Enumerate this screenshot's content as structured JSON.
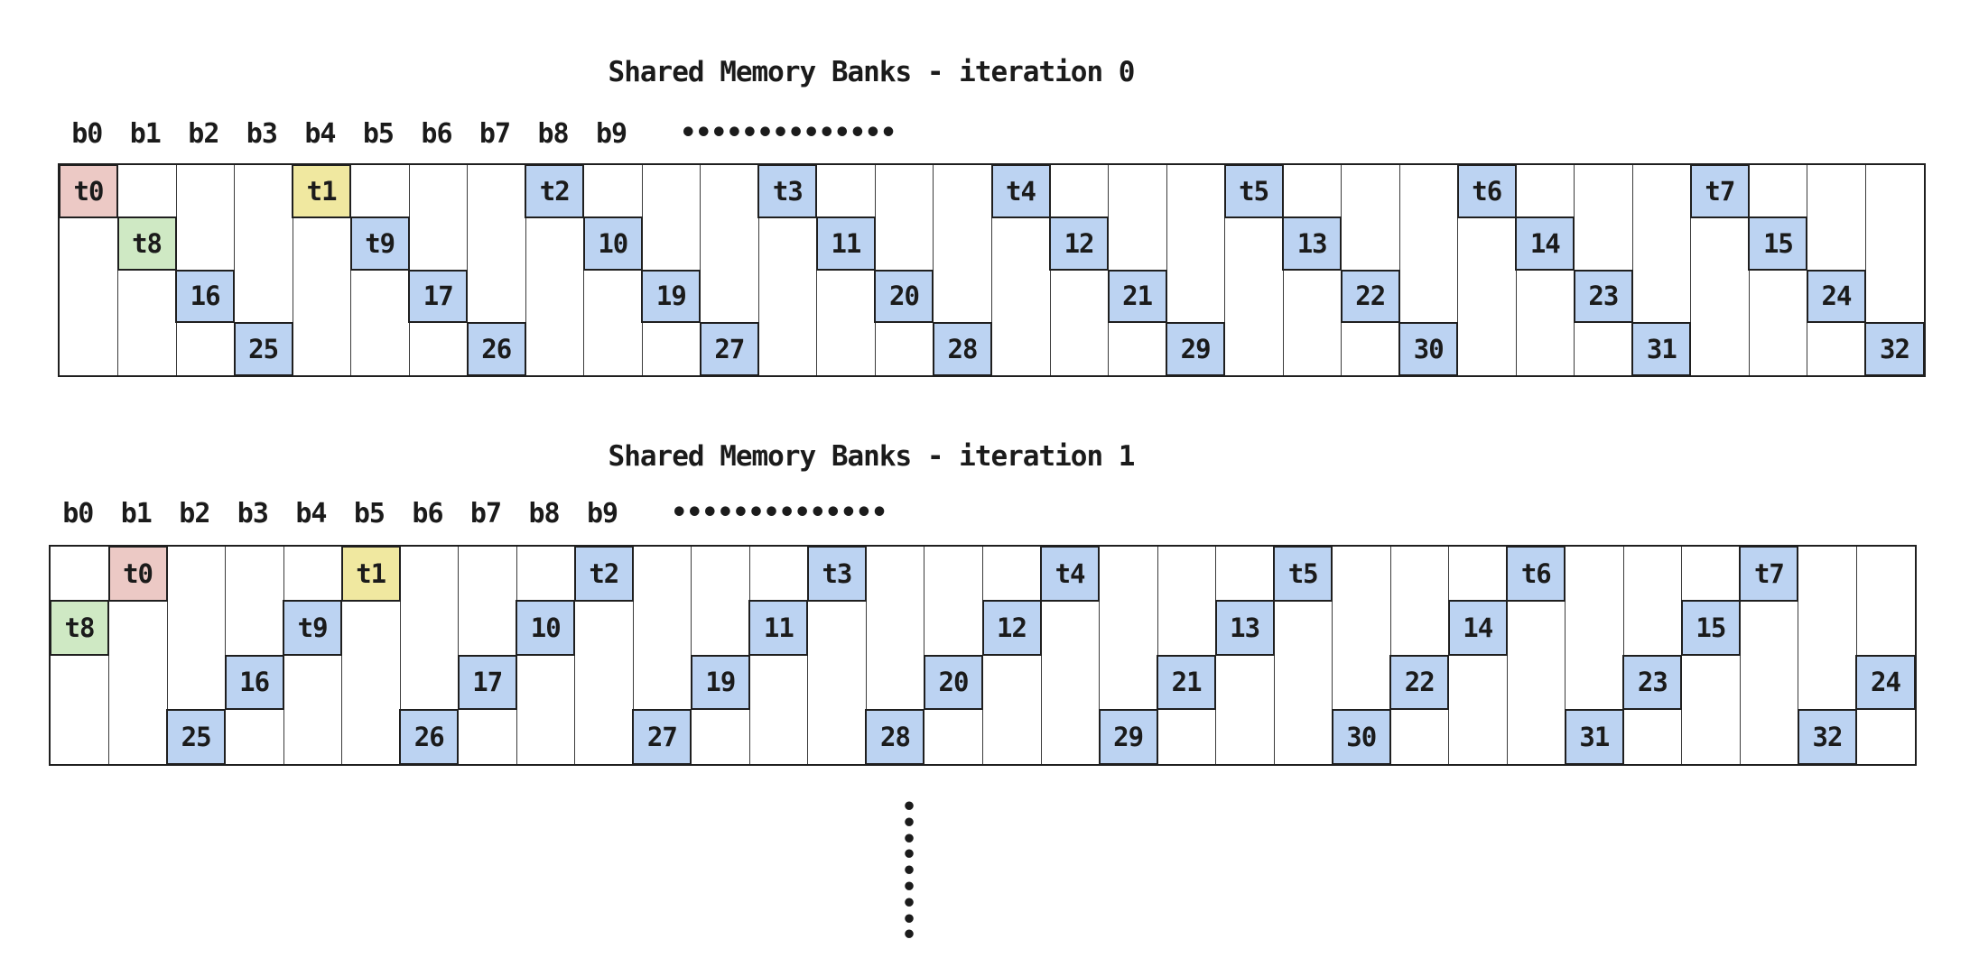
{
  "palette": {
    "red": "#ecc9c5",
    "green": "#cfe9c4",
    "yellow": "#f0e8a0",
    "blue": "#bcd3f2",
    "line": "#1f1f1f",
    "text": "#1b1b1b"
  },
  "vertical_dots": "•••••••••",
  "diagrams": [
    {
      "title": "Shared Memory Banks - iteration 0",
      "bank_labels": [
        "b0",
        "b1",
        "b2",
        "b3",
        "b4",
        "b5",
        "b6",
        "b7",
        "b8",
        "b9"
      ],
      "dots": "••••••••••••••",
      "banks": 32,
      "rows": 4,
      "cells": [
        {
          "row": 0,
          "col": 0,
          "label": "t0",
          "color": "red"
        },
        {
          "row": 1,
          "col": 1,
          "label": "t8",
          "color": "green"
        },
        {
          "row": 2,
          "col": 2,
          "label": "16",
          "color": "blue"
        },
        {
          "row": 3,
          "col": 3,
          "label": "25",
          "color": "blue"
        },
        {
          "row": 0,
          "col": 4,
          "label": "t1",
          "color": "yellow"
        },
        {
          "row": 1,
          "col": 5,
          "label": "t9",
          "color": "blue"
        },
        {
          "row": 2,
          "col": 6,
          "label": "17",
          "color": "blue"
        },
        {
          "row": 3,
          "col": 7,
          "label": "26",
          "color": "blue"
        },
        {
          "row": 0,
          "col": 8,
          "label": "t2",
          "color": "blue"
        },
        {
          "row": 1,
          "col": 9,
          "label": "10",
          "color": "blue"
        },
        {
          "row": 2,
          "col": 10,
          "label": "19",
          "color": "blue"
        },
        {
          "row": 3,
          "col": 11,
          "label": "27",
          "color": "blue"
        },
        {
          "row": 0,
          "col": 12,
          "label": "t3",
          "color": "blue"
        },
        {
          "row": 1,
          "col": 13,
          "label": "11",
          "color": "blue"
        },
        {
          "row": 2,
          "col": 14,
          "label": "20",
          "color": "blue"
        },
        {
          "row": 3,
          "col": 15,
          "label": "28",
          "color": "blue"
        },
        {
          "row": 0,
          "col": 16,
          "label": "t4",
          "color": "blue"
        },
        {
          "row": 1,
          "col": 17,
          "label": "12",
          "color": "blue"
        },
        {
          "row": 2,
          "col": 18,
          "label": "21",
          "color": "blue"
        },
        {
          "row": 3,
          "col": 19,
          "label": "29",
          "color": "blue"
        },
        {
          "row": 0,
          "col": 20,
          "label": "t5",
          "color": "blue"
        },
        {
          "row": 1,
          "col": 21,
          "label": "13",
          "color": "blue"
        },
        {
          "row": 2,
          "col": 22,
          "label": "22",
          "color": "blue"
        },
        {
          "row": 3,
          "col": 23,
          "label": "30",
          "color": "blue"
        },
        {
          "row": 0,
          "col": 24,
          "label": "t6",
          "color": "blue"
        },
        {
          "row": 1,
          "col": 25,
          "label": "14",
          "color": "blue"
        },
        {
          "row": 2,
          "col": 26,
          "label": "23",
          "color": "blue"
        },
        {
          "row": 3,
          "col": 27,
          "label": "31",
          "color": "blue"
        },
        {
          "row": 0,
          "col": 28,
          "label": "t7",
          "color": "blue"
        },
        {
          "row": 1,
          "col": 29,
          "label": "15",
          "color": "blue"
        },
        {
          "row": 2,
          "col": 30,
          "label": "24",
          "color": "blue"
        },
        {
          "row": 3,
          "col": 31,
          "label": "32",
          "color": "blue"
        }
      ]
    },
    {
      "title": "Shared Memory Banks - iteration 1",
      "bank_labels": [
        "b0",
        "b1",
        "b2",
        "b3",
        "b4",
        "b5",
        "b6",
        "b7",
        "b8",
        "b9"
      ],
      "dots": "••••••••••••••",
      "banks": 32,
      "rows": 4,
      "cells": [
        {
          "row": 1,
          "col": 0,
          "label": "t8",
          "color": "green"
        },
        {
          "row": 0,
          "col": 1,
          "label": "t0",
          "color": "red"
        },
        {
          "row": 3,
          "col": 2,
          "label": "25",
          "color": "blue"
        },
        {
          "row": 2,
          "col": 3,
          "label": "16",
          "color": "blue"
        },
        {
          "row": 1,
          "col": 4,
          "label": "t9",
          "color": "blue"
        },
        {
          "row": 0,
          "col": 5,
          "label": "t1",
          "color": "yellow"
        },
        {
          "row": 3,
          "col": 6,
          "label": "26",
          "color": "blue"
        },
        {
          "row": 2,
          "col": 7,
          "label": "17",
          "color": "blue"
        },
        {
          "row": 1,
          "col": 8,
          "label": "10",
          "color": "blue"
        },
        {
          "row": 0,
          "col": 9,
          "label": "t2",
          "color": "blue"
        },
        {
          "row": 3,
          "col": 10,
          "label": "27",
          "color": "blue"
        },
        {
          "row": 2,
          "col": 11,
          "label": "19",
          "color": "blue"
        },
        {
          "row": 1,
          "col": 12,
          "label": "11",
          "color": "blue"
        },
        {
          "row": 0,
          "col": 13,
          "label": "t3",
          "color": "blue"
        },
        {
          "row": 3,
          "col": 14,
          "label": "28",
          "color": "blue"
        },
        {
          "row": 2,
          "col": 15,
          "label": "20",
          "color": "blue"
        },
        {
          "row": 1,
          "col": 16,
          "label": "12",
          "color": "blue"
        },
        {
          "row": 0,
          "col": 17,
          "label": "t4",
          "color": "blue"
        },
        {
          "row": 3,
          "col": 18,
          "label": "29",
          "color": "blue"
        },
        {
          "row": 2,
          "col": 19,
          "label": "21",
          "color": "blue"
        },
        {
          "row": 1,
          "col": 20,
          "label": "13",
          "color": "blue"
        },
        {
          "row": 0,
          "col": 21,
          "label": "t5",
          "color": "blue"
        },
        {
          "row": 3,
          "col": 22,
          "label": "30",
          "color": "blue"
        },
        {
          "row": 2,
          "col": 23,
          "label": "22",
          "color": "blue"
        },
        {
          "row": 1,
          "col": 24,
          "label": "14",
          "color": "blue"
        },
        {
          "row": 0,
          "col": 25,
          "label": "t6",
          "color": "blue"
        },
        {
          "row": 3,
          "col": 26,
          "label": "31",
          "color": "blue"
        },
        {
          "row": 2,
          "col": 27,
          "label": "23",
          "color": "blue"
        },
        {
          "row": 1,
          "col": 28,
          "label": "15",
          "color": "blue"
        },
        {
          "row": 0,
          "col": 29,
          "label": "t7",
          "color": "blue"
        },
        {
          "row": 3,
          "col": 30,
          "label": "32",
          "color": "blue"
        },
        {
          "row": 2,
          "col": 31,
          "label": "24",
          "color": "blue"
        }
      ]
    }
  ]
}
